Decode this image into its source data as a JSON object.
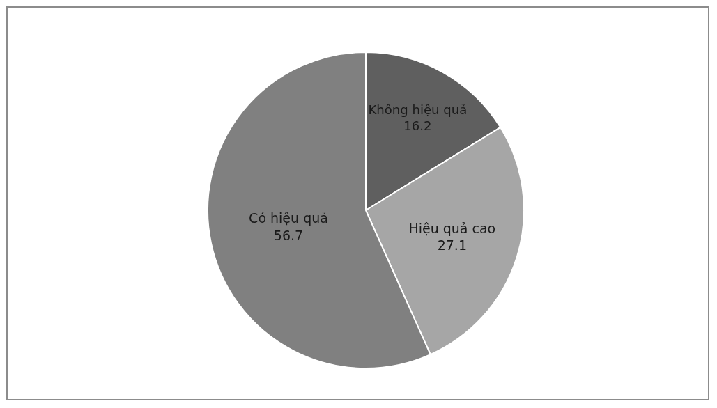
{
  "chart_data": {
    "type": "pie",
    "categories": [
      "Không hiệu quả",
      "Hiệu quả cao",
      "Có hiệu quả"
    ],
    "values": [
      16.2,
      27.1,
      56.7
    ],
    "colors": [
      "#5f5f5f",
      "#a6a6a6",
      "#808080"
    ],
    "data_labels": true,
    "legend": false
  }
}
